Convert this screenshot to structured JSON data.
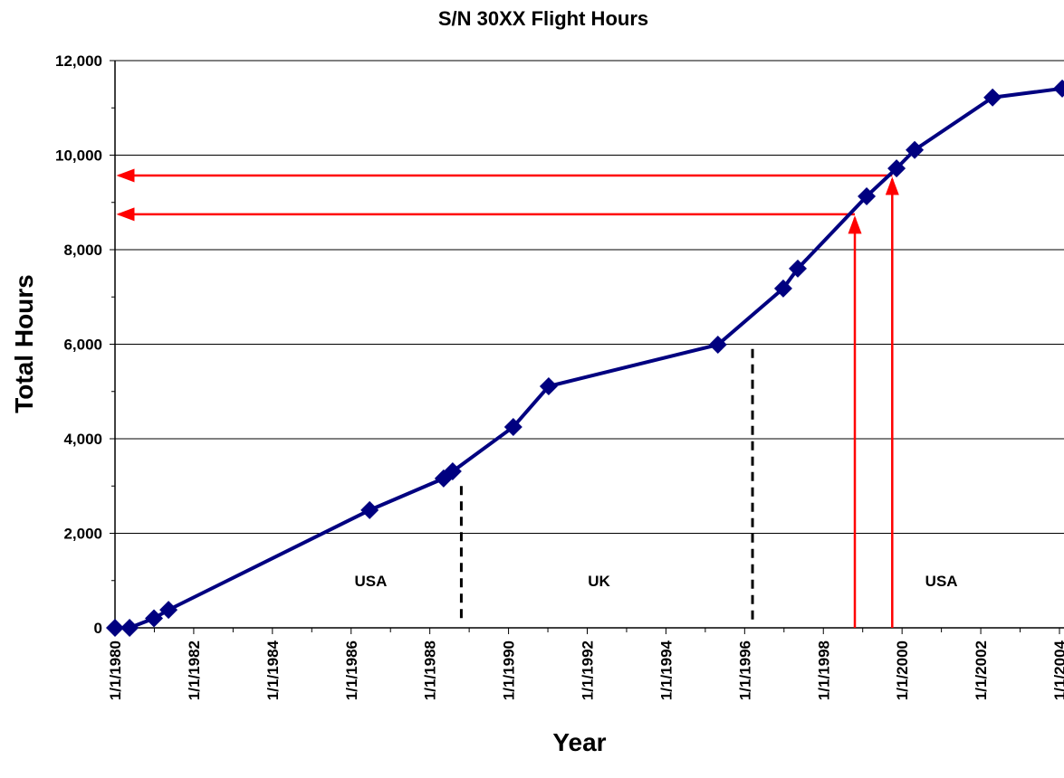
{
  "chart_data": {
    "type": "line",
    "title": "S/N 30XX Flight Hours",
    "x_label": "Year",
    "y_label": "Total Hours",
    "xlim": [
      1980,
      2004.1
    ],
    "ylim": [
      0,
      12000
    ],
    "xticks": [
      {
        "value": 1980,
        "label": "1/1/1980"
      },
      {
        "value": 1982,
        "label": "1/1/1982"
      },
      {
        "value": 1984,
        "label": "1/1/1984"
      },
      {
        "value": 1986,
        "label": "1/1/1986"
      },
      {
        "value": 1988,
        "label": "1/1/1988"
      },
      {
        "value": 1990,
        "label": "1/1/1990"
      },
      {
        "value": 1992,
        "label": "1/1/1992"
      },
      {
        "value": 1994,
        "label": "1/1/1994"
      },
      {
        "value": 1996,
        "label": "1/1/1996"
      },
      {
        "value": 1998,
        "label": "1/1/1998"
      },
      {
        "value": 2000,
        "label": "1/1/2000"
      },
      {
        "value": 2002,
        "label": "1/1/2002"
      },
      {
        "value": 2004,
        "label": "1/1/2004"
      }
    ],
    "yticks": [
      0,
      {
        "value": 2000,
        "label": "2,000"
      },
      {
        "value": 4000,
        "label": "4,000"
      },
      {
        "value": 6000,
        "label": "6,000"
      },
      {
        "value": 8000,
        "label": "8,000"
      },
      {
        "value": 10000,
        "label": "10,000"
      },
      {
        "value": 12000,
        "label": "12,000"
      }
    ],
    "grid": true,
    "x": [
      1980.0,
      1980.37,
      1980.99,
      1981.36,
      1986.47,
      1988.35,
      1988.58,
      1990.12,
      1991.02,
      1995.32,
      1996.98,
      1997.35,
      1999.1,
      1999.86,
      2000.32,
      2002.3,
      2004.07
    ],
    "series": [
      {
        "name": "Total Hours",
        "color": "#000080",
        "values": [
          0,
          0,
          200,
          380,
          2490,
          3160,
          3310,
          4250,
          5110,
          5990,
          7180,
          7600,
          9130,
          9720,
          10110,
          11220,
          11410
        ]
      }
    ],
    "dividers": [
      {
        "x": 1988.8,
        "top": 3000
      },
      {
        "x": 1996.2,
        "top": 5900
      }
    ],
    "regions": [
      {
        "label": "USA",
        "x": 1986.5,
        "y": 1000
      },
      {
        "label": "UK",
        "x": 1992.3,
        "y": 1000
      },
      {
        "label": "USA",
        "x": 2001.0,
        "y": 1000
      }
    ],
    "arrows": [
      {
        "x": 1998.8,
        "y": 8750
      },
      {
        "x": 1999.75,
        "y": 9570
      }
    ],
    "arrow_color": "#ff0000"
  }
}
